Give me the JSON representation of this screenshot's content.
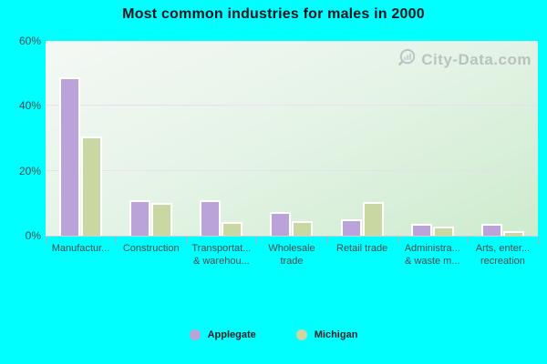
{
  "title": "Most common industries for males in 2000",
  "watermark": "City-Data.com",
  "colors": {
    "background": "#00ffff",
    "applegate": "#b9a3d9",
    "michigan": "#c9d8a3",
    "gridline": "#e7ddee"
  },
  "legend": [
    {
      "label": "Applegate",
      "color": "#b9a3d9"
    },
    {
      "label": "Michigan",
      "color": "#c9d8a3"
    }
  ],
  "chart_data": {
    "type": "bar",
    "title": "Most common industries for males in 2000",
    "categories": [
      "Manufactur...",
      "Construction",
      "Transportat... & warehou...",
      "Wholesale trade",
      "Retail trade",
      "Administra... & waste m...",
      "Arts, enter... recreation"
    ],
    "category_label_lines": [
      [
        "Manufactur..."
      ],
      [
        "Construction"
      ],
      [
        "Transportat...",
        "& warehou..."
      ],
      [
        "Wholesale",
        "trade"
      ],
      [
        "Retail trade"
      ],
      [
        "Administra...",
        "& waste m..."
      ],
      [
        "Arts, enter...",
        "recreation"
      ]
    ],
    "series": [
      {
        "name": "Applegate",
        "color": "#b9a3d9",
        "values": [
          48.8,
          10.8,
          10.8,
          7.4,
          5.1,
          3.7,
          3.7
        ]
      },
      {
        "name": "Michigan",
        "color": "#c9d8a3",
        "values": [
          30.6,
          10.1,
          4.2,
          4.6,
          10.4,
          2.8,
          1.4
        ]
      }
    ],
    "xlabel": "",
    "ylabel": "",
    "ylim": [
      0,
      60
    ],
    "yticks": [
      0,
      20,
      40,
      60
    ],
    "ytick_suffix": "%",
    "grid": true,
    "legend_position": "bottom"
  }
}
